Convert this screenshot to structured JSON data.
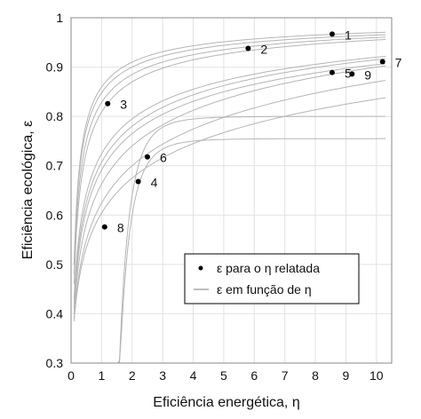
{
  "chart_data": {
    "type": "scatter",
    "title": "",
    "xlabel": "Eficiência energética, η",
    "ylabel": "Eficiência ecológica, ε",
    "xlim": [
      0,
      10.5
    ],
    "ylim": [
      0.3,
      1.0
    ],
    "xticks": [
      "0",
      "1",
      "2",
      "3",
      "4",
      "5",
      "6",
      "7",
      "8",
      "9",
      "10"
    ],
    "yticks": [
      "0.3",
      "0.4",
      "0.5",
      "0.6",
      "0.7",
      "0.8",
      "0.9",
      "1"
    ],
    "grid": true,
    "legend_position": "lower-right",
    "legend": [
      {
        "label": "ε para o η relatada",
        "marker": "dot"
      },
      {
        "label": "ε em função de η",
        "marker": "line"
      }
    ],
    "points": [
      {
        "label": "1",
        "x": 8.55,
        "y": 0.967
      },
      {
        "label": "2",
        "x": 5.8,
        "y": 0.938
      },
      {
        "label": "3",
        "x": 1.2,
        "y": 0.826
      },
      {
        "label": "4",
        "x": 2.2,
        "y": 0.668
      },
      {
        "label": "5",
        "x": 8.55,
        "y": 0.889
      },
      {
        "label": "6",
        "x": 2.5,
        "y": 0.718
      },
      {
        "label": "7",
        "x": 10.2,
        "y": 0.911
      },
      {
        "label": "8",
        "x": 1.1,
        "y": 0.576
      },
      {
        "label": "9",
        "x": 9.2,
        "y": 0.886
      }
    ],
    "curves": [
      {
        "x0": 0.1,
        "y0": 0.5,
        "y2": 0.91,
        "y10": 0.97
      },
      {
        "x0": 0.1,
        "y0": 0.5,
        "y2": 0.9,
        "y10": 0.965
      },
      {
        "x0": 0.1,
        "y0": 0.48,
        "y2": 0.885,
        "y10": 0.96
      },
      {
        "x0": 0.1,
        "y0": 0.46,
        "y2": 0.87,
        "y10": 0.955
      },
      {
        "x0": 0.1,
        "y0": 0.43,
        "y2": 0.795,
        "y10": 0.92
      },
      {
        "x0": 0.1,
        "y0": 0.42,
        "y2": 0.78,
        "y10": 0.915
      },
      {
        "x0": 0.1,
        "y0": 0.41,
        "y2": 0.765,
        "y10": 0.905
      },
      {
        "x0": 0.1,
        "y0": 0.4,
        "y2": 0.74,
        "y10": 0.9
      },
      {
        "x0": 0.1,
        "y0": 0.39,
        "y2": 0.7,
        "y10": 0.87
      },
      {
        "x0": 0.1,
        "y0": 0.385,
        "y2": 0.675,
        "y10": 0.835
      },
      {
        "x0": 0.1,
        "y0": 0.38,
        "y2": 0.64,
        "y10": 0.8
      },
      {
        "x0": 0.1,
        "y0": 0.375,
        "y2": 0.6,
        "y10": 0.755
      }
    ],
    "colors": {
      "grid": "#e2e2e2",
      "curve": "#b5b5b5",
      "point": "#000000",
      "axis": "#333333"
    }
  }
}
